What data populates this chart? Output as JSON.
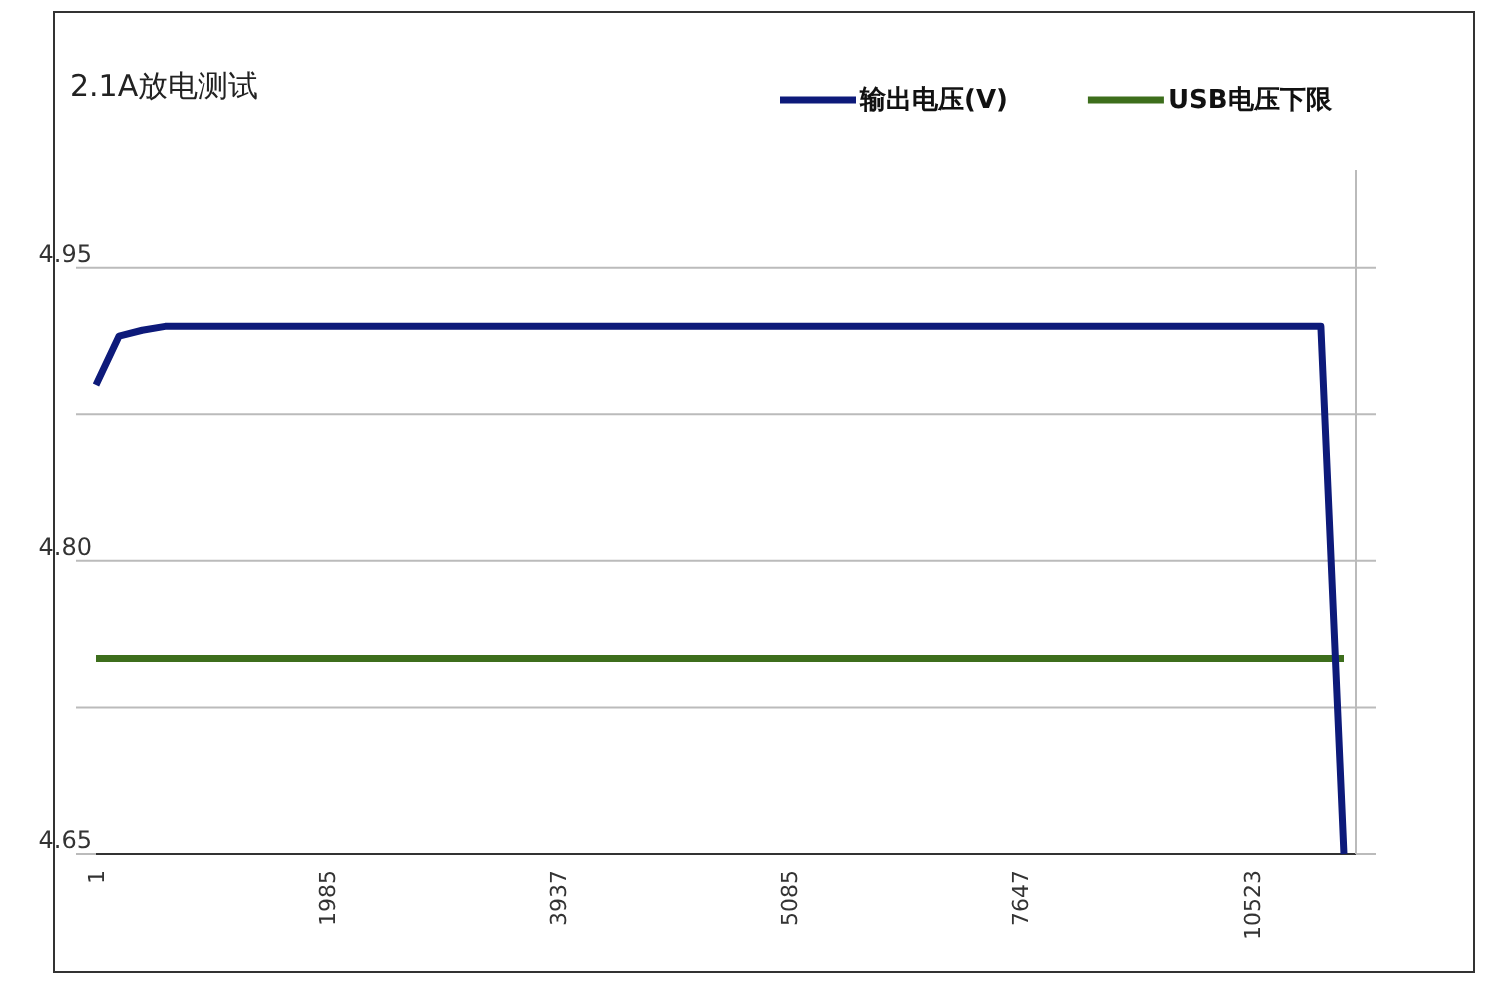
{
  "chart_data": {
    "type": "line",
    "title": "2.1A放电测试",
    "categories": [
      "1",
      null,
      null,
      null,
      null,
      null,
      null,
      null,
      null,
      null,
      "1985",
      null,
      null,
      null,
      null,
      null,
      null,
      null,
      null,
      null,
      "3937",
      null,
      null,
      null,
      null,
      null,
      null,
      null,
      null,
      null,
      "5085",
      null,
      null,
      null,
      null,
      null,
      null,
      null,
      null,
      null,
      "7647",
      null,
      null,
      null,
      null,
      null,
      null,
      null,
      null,
      null,
      "10523",
      null,
      null,
      null,
      null
    ],
    "series": [
      {
        "name": "输出电压(V)",
        "color": "#0d1a7a",
        "values": [
          4.89,
          4.915,
          4.918,
          4.92,
          4.92,
          4.92,
          4.92,
          4.92,
          4.92,
          4.92,
          4.92,
          4.92,
          4.92,
          4.92,
          4.92,
          4.92,
          4.92,
          4.92,
          4.92,
          4.92,
          4.92,
          4.92,
          4.92,
          4.92,
          4.92,
          4.92,
          4.92,
          4.92,
          4.92,
          4.92,
          4.92,
          4.92,
          4.92,
          4.92,
          4.92,
          4.92,
          4.92,
          4.92,
          4.92,
          4.92,
          4.92,
          4.92,
          4.92,
          4.92,
          4.92,
          4.92,
          4.92,
          4.92,
          4.92,
          4.92,
          4.92,
          4.92,
          4.92,
          4.92,
          4.65
        ]
      },
      {
        "name": "USB电压下限",
        "color": "#3d6e1c",
        "values": [
          4.75,
          4.75,
          4.75,
          4.75,
          4.75,
          4.75,
          4.75,
          4.75,
          4.75,
          4.75,
          4.75,
          4.75,
          4.75,
          4.75,
          4.75,
          4.75,
          4.75,
          4.75,
          4.75,
          4.75,
          4.75,
          4.75,
          4.75,
          4.75,
          4.75,
          4.75,
          4.75,
          4.75,
          4.75,
          4.75,
          4.75,
          4.75,
          4.75,
          4.75,
          4.75,
          4.75,
          4.75,
          4.75,
          4.75,
          4.75,
          4.75,
          4.75,
          4.75,
          4.75,
          4.75,
          4.75,
          4.75,
          4.75,
          4.75,
          4.75,
          4.75,
          4.75,
          4.75,
          4.75,
          4.75
        ]
      }
    ],
    "ylim": [
      4.65,
      5.0
    ],
    "yticks": [
      {
        "value": 4.65,
        "label": "4.65"
      },
      {
        "value": 4.725,
        "label": null
      },
      {
        "value": 4.8,
        "label": "4.80"
      },
      {
        "value": 4.875,
        "label": null
      },
      {
        "value": 4.95,
        "label": "4.95"
      }
    ],
    "grid": "y",
    "legend": "top right",
    "marker": "none",
    "line_style": "solid"
  }
}
